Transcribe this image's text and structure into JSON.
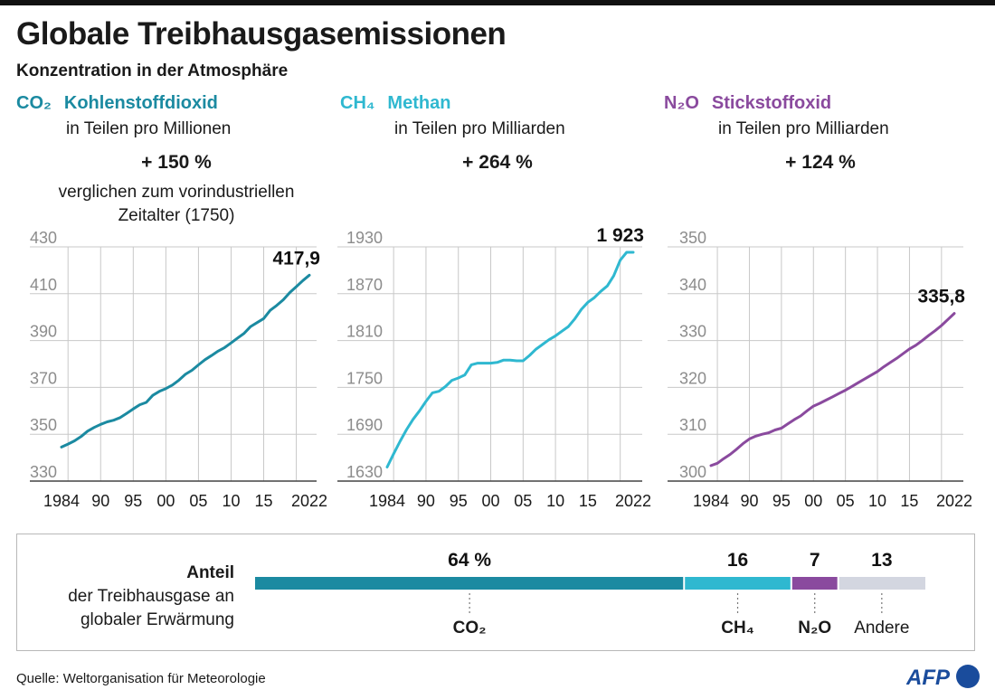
{
  "header": {
    "title": "Globale Treibhausgasemissionen",
    "subtitle": "Konzentration in der Atmosphäre"
  },
  "gases": [
    {
      "formula": "CO₂",
      "name": "Kohlenstoffdioxid",
      "unit": "in Teilen pro Millionen",
      "change": "+ 150 %",
      "color": "#1b8aa1"
    },
    {
      "formula": "CH₄",
      "name": "Methan",
      "unit": "in Teilen pro Milliarden",
      "change": "+ 264 %",
      "color": "#2fb8d0"
    },
    {
      "formula": "N₂O",
      "name": "Stickstoffoxid",
      "unit": "in Teilen pro Milliarden",
      "change": "+ 124 %",
      "color": "#8a4a9e"
    }
  ],
  "change_note": "verglichen zum vorindustriellen Zeitalter (1750)",
  "chart_data": [
    {
      "type": "line",
      "series_label": "CO₂",
      "x_ticks": [
        "1984",
        "90",
        "95",
        "00",
        "05",
        "10",
        "15",
        "2022"
      ],
      "x_tick_values": [
        1984,
        1990,
        1995,
        2000,
        2005,
        2010,
        2015,
        2022
      ],
      "y_ticks": [
        "330",
        "350",
        "370",
        "390",
        "410",
        "430"
      ],
      "ylim": [
        330,
        430
      ],
      "xlim": [
        1984,
        2022
      ],
      "end_label": "417,9",
      "color": "#1b8aa1",
      "x": [
        1984,
        1985,
        1986,
        1987,
        1988,
        1989,
        1990,
        1991,
        1992,
        1993,
        1994,
        1995,
        1996,
        1997,
        1998,
        1999,
        2000,
        2001,
        2002,
        2003,
        2004,
        2005,
        2006,
        2007,
        2008,
        2009,
        2010,
        2011,
        2012,
        2013,
        2014,
        2015,
        2016,
        2017,
        2018,
        2019,
        2020,
        2021,
        2022
      ],
      "y": [
        344.5,
        345.8,
        347.2,
        349.0,
        351.3,
        352.9,
        354.2,
        355.3,
        356.0,
        357.1,
        358.9,
        360.8,
        362.6,
        363.6,
        366.6,
        368.3,
        369.5,
        371.0,
        373.1,
        375.6,
        377.3,
        379.6,
        381.8,
        383.6,
        385.5,
        387.0,
        389.0,
        391.1,
        393.1,
        396.0,
        397.7,
        399.4,
        402.9,
        405.0,
        407.4,
        410.5,
        413.0,
        415.6,
        417.9
      ]
    },
    {
      "type": "line",
      "series_label": "CH₄",
      "x_ticks": [
        "1984",
        "90",
        "95",
        "00",
        "05",
        "10",
        "15",
        "2022"
      ],
      "x_tick_values": [
        1984,
        1990,
        1995,
        2000,
        2005,
        2010,
        2015,
        2022
      ],
      "y_ticks": [
        "1630",
        "1690",
        "1750",
        "1810",
        "1870",
        "1930"
      ],
      "ylim": [
        1630,
        1930
      ],
      "xlim": [
        1984,
        2022
      ],
      "end_label": "1 923",
      "color": "#2fb8d0",
      "x": [
        1984,
        1985,
        1986,
        1987,
        1988,
        1989,
        1990,
        1991,
        1992,
        1993,
        1994,
        1995,
        1996,
        1997,
        1998,
        1999,
        2000,
        2001,
        2002,
        2003,
        2004,
        2005,
        2006,
        2007,
        2008,
        2009,
        2010,
        2011,
        2012,
        2013,
        2014,
        2015,
        2016,
        2017,
        2018,
        2019,
        2020,
        2021,
        2022
      ],
      "y": [
        1648,
        1665,
        1681,
        1696,
        1709,
        1720,
        1732,
        1743,
        1745,
        1751,
        1759,
        1762,
        1766,
        1779,
        1781,
        1781,
        1781,
        1782,
        1785,
        1785,
        1784,
        1784,
        1791,
        1799,
        1805,
        1811,
        1816,
        1822,
        1828,
        1838,
        1850,
        1859,
        1865,
        1873,
        1880,
        1893,
        1913,
        1923,
        1923
      ]
    },
    {
      "type": "line",
      "series_label": "N₂O",
      "x_ticks": [
        "1984",
        "90",
        "95",
        "00",
        "05",
        "10",
        "15",
        "2022"
      ],
      "x_tick_values": [
        1984,
        1990,
        1995,
        2000,
        2005,
        2010,
        2015,
        2022
      ],
      "y_ticks": [
        "300",
        "310",
        "320",
        "330",
        "340",
        "350"
      ],
      "ylim": [
        300,
        350
      ],
      "xlim": [
        1984,
        2022
      ],
      "end_label": "335,8",
      "color": "#8a4a9e",
      "x": [
        1984,
        1985,
        1986,
        1987,
        1988,
        1989,
        1990,
        1991,
        1992,
        1993,
        1994,
        1995,
        1996,
        1997,
        1998,
        1999,
        2000,
        2001,
        2002,
        2003,
        2004,
        2005,
        2006,
        2007,
        2008,
        2009,
        2010,
        2011,
        2012,
        2013,
        2014,
        2015,
        2016,
        2017,
        2018,
        2019,
        2020,
        2021,
        2022
      ],
      "y": [
        303.3,
        303.8,
        304.8,
        305.7,
        306.8,
        308.0,
        309.0,
        309.6,
        310.0,
        310.3,
        310.9,
        311.3,
        312.2,
        313.1,
        313.9,
        315.0,
        316.0,
        316.6,
        317.3,
        318.0,
        318.7,
        319.4,
        320.2,
        321.0,
        321.8,
        322.6,
        323.4,
        324.4,
        325.3,
        326.2,
        327.2,
        328.2,
        329.0,
        330.0,
        331.1,
        332.1,
        333.2,
        334.5,
        335.8
      ]
    },
    {
      "type": "bar",
      "orientation": "horizontal-stacked",
      "title": "Anteil",
      "subtitle": "der Treibhausgase an globaler Erwärmung",
      "categories": [
        "CO₂",
        "CH₄",
        "N₂O",
        "Andere"
      ],
      "values": [
        64,
        16,
        7,
        13
      ],
      "value_labels": [
        "64 %",
        "16",
        "7",
        "13"
      ],
      "colors": [
        "#1b8aa1",
        "#2fb8d0",
        "#8a4a9e",
        "#d3d6e0"
      ]
    }
  ],
  "footer": {
    "source": "Quelle: Weltorganisation für Meteorologie",
    "logo_text": "AFP"
  },
  "style": {
    "axis_text_color": "#8c8c8c",
    "grid_color": "#c8c8c8"
  }
}
